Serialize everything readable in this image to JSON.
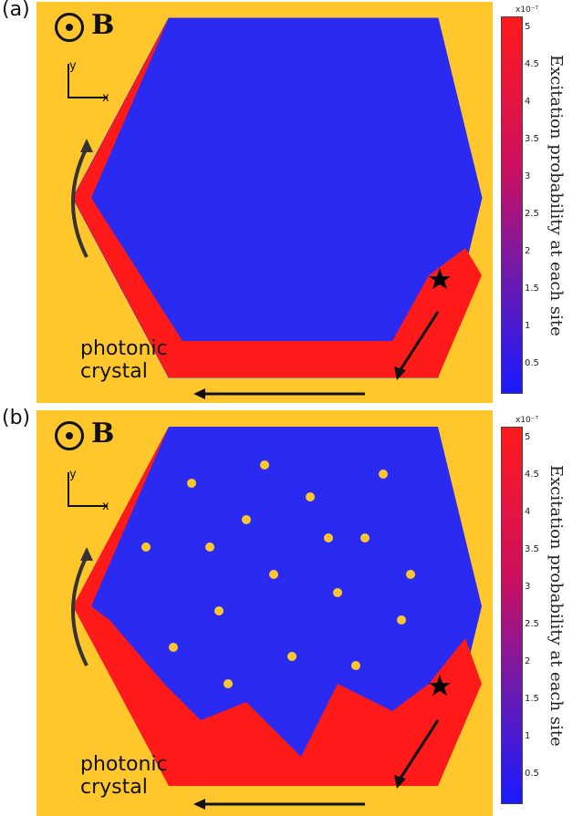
{
  "colors": {
    "background": "#ffc72c",
    "lattice": "#fffbe8",
    "high": "#ff1a1a",
    "low": "#1a1aff",
    "mid": "#6a1ab0"
  },
  "panels": [
    {
      "label": "(a)",
      "b_label": "B",
      "axis_y": "y",
      "axis_x": "x",
      "text_line1": "photonic",
      "text_line2": "crystal"
    },
    {
      "label": "(b)",
      "b_label": "B",
      "axis_y": "y",
      "axis_x": "x",
      "text_line1": "photonic",
      "text_line2": "crystal"
    }
  ],
  "colorbar": {
    "exponent": "x10⁻⁷",
    "ticks": [
      "5",
      "4.5",
      "4",
      "3.5",
      "3",
      "2.5",
      "2",
      "1.5",
      "1",
      "0.5"
    ],
    "title": "Excitation probability  at each site",
    "range": [
      0,
      5
    ]
  }
}
